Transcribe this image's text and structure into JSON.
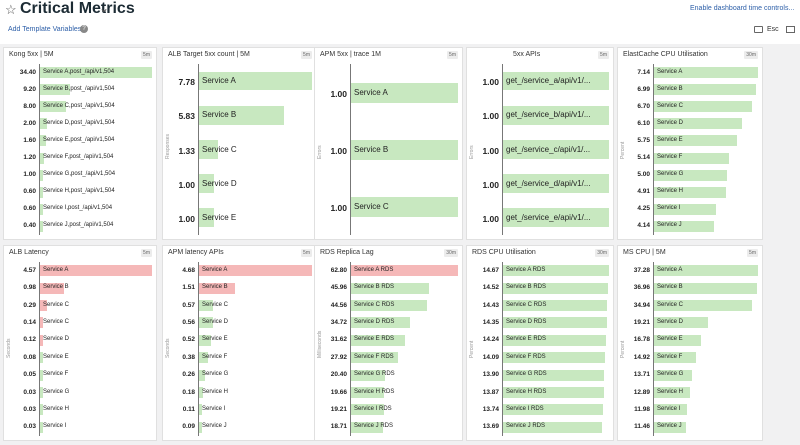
{
  "header": {
    "title": "Critical Metrics",
    "add_template_variables": "Add Template Variables",
    "enable_controls": "Enable dashboard time controls...",
    "esc": "Esc"
  },
  "colors": {
    "green": "#c8e8c0",
    "red": "#f5b8b8",
    "link": "#2d5fa8"
  },
  "widgets": [
    {
      "title": "Kong 5xx | 5M",
      "badge": "5m",
      "ylabel": "",
      "rows": [
        {
          "value": "34.40",
          "label": "Service A,post_/api/v1,504",
          "frac": 1.0,
          "color": "green"
        },
        {
          "value": "9.20",
          "label": "Service B,post_/api/v1,504",
          "frac": 0.27,
          "color": "green"
        },
        {
          "value": "8.00",
          "label": "Service C,post_/api/v1,504",
          "frac": 0.23,
          "color": "green"
        },
        {
          "value": "2.00",
          "label": "Service D,post_/api/v1,504",
          "frac": 0.06,
          "color": "green"
        },
        {
          "value": "1.60",
          "label": "Service E,post_/api/v1,504",
          "frac": 0.05,
          "color": "green"
        },
        {
          "value": "1.20",
          "label": "Service F,post_/api/v1,504",
          "frac": 0.04,
          "color": "green"
        },
        {
          "value": "1.00",
          "label": "Service G,post_/api/v1,504",
          "frac": 0.03,
          "color": "green"
        },
        {
          "value": "0.60",
          "label": "Service H,post_/api/v1,504",
          "frac": 0.02,
          "color": "green"
        },
        {
          "value": "0.60",
          "label": "Service I,post_/api/v1,504",
          "frac": 0.02,
          "color": "green"
        },
        {
          "value": "0.40",
          "label": "Service J,post_/api/v1,504",
          "frac": 0.01,
          "color": "green"
        }
      ]
    },
    {
      "title": "ALB Target 5xx count | 5M",
      "badge": "5m",
      "ylabel": "Responses",
      "rows": [
        {
          "value": "7.78",
          "label": "Service A",
          "frac": 1.0,
          "color": "green"
        },
        {
          "value": "5.83",
          "label": "Service B",
          "frac": 0.75,
          "color": "green"
        },
        {
          "value": "1.33",
          "label": "Service C",
          "frac": 0.17,
          "color": "green"
        },
        {
          "value": "1.00",
          "label": "Service D",
          "frac": 0.13,
          "color": "green"
        },
        {
          "value": "1.00",
          "label": "Service E",
          "frac": 0.13,
          "color": "green"
        }
      ]
    },
    {
      "title": "APM 5xx | trace 1M",
      "badge": "5m",
      "ylabel": "Errors",
      "rows": [
        {
          "value": "1.00",
          "label": "Service A",
          "frac": 1.0,
          "color": "green"
        },
        {
          "value": "1.00",
          "label": "Service B",
          "frac": 1.0,
          "color": "green"
        },
        {
          "value": "1.00",
          "label": "Service C",
          "frac": 1.0,
          "color": "green"
        }
      ]
    },
    {
      "title": "5xx APIs",
      "badge": "5m",
      "ylabel": "Errors",
      "rows": [
        {
          "value": "1.00",
          "label": "get_/service_a/api/v1/...",
          "frac": 1.0,
          "color": "green"
        },
        {
          "value": "1.00",
          "label": "get_/service_b/api/v1/...",
          "frac": 1.0,
          "color": "green"
        },
        {
          "value": "1.00",
          "label": "get_/service_c/api/v1/...",
          "frac": 1.0,
          "color": "green"
        },
        {
          "value": "1.00",
          "label": "get_/service_d/api/v1/...",
          "frac": 1.0,
          "color": "green"
        },
        {
          "value": "1.00",
          "label": "get_/service_e/api/v1/...",
          "frac": 1.0,
          "color": "green"
        }
      ]
    },
    {
      "title": "ElastCache CPU Utilisation",
      "badge": "30m",
      "ylabel": "Percent",
      "rows": [
        {
          "value": "7.14",
          "label": "Service A",
          "frac": 1.0,
          "color": "green"
        },
        {
          "value": "6.99",
          "label": "Service B",
          "frac": 0.98,
          "color": "green"
        },
        {
          "value": "6.70",
          "label": "Service C",
          "frac": 0.94,
          "color": "green"
        },
        {
          "value": "6.10",
          "label": "Service D",
          "frac": 0.85,
          "color": "green"
        },
        {
          "value": "5.75",
          "label": "Service E",
          "frac": 0.8,
          "color": "green"
        },
        {
          "value": "5.14",
          "label": "Service F",
          "frac": 0.72,
          "color": "green"
        },
        {
          "value": "5.00",
          "label": "Service G",
          "frac": 0.7,
          "color": "green"
        },
        {
          "value": "4.91",
          "label": "Service H",
          "frac": 0.69,
          "color": "green"
        },
        {
          "value": "4.25",
          "label": "Service I",
          "frac": 0.6,
          "color": "green"
        },
        {
          "value": "4.14",
          "label": "Service J",
          "frac": 0.58,
          "color": "green"
        }
      ]
    },
    {
      "title": "ALB Latency",
      "badge": "5m",
      "ylabel": "Seconds",
      "rows": [
        {
          "value": "4.57",
          "label": "Service A",
          "frac": 1.0,
          "color": "red"
        },
        {
          "value": "0.98",
          "label": "Service B",
          "frac": 0.21,
          "color": "red"
        },
        {
          "value": "0.29",
          "label": "Service C",
          "frac": 0.06,
          "color": "red"
        },
        {
          "value": "0.14",
          "label": "Service C",
          "frac": 0.03,
          "color": "red"
        },
        {
          "value": "0.12",
          "label": "Service D",
          "frac": 0.03,
          "color": "red"
        },
        {
          "value": "0.08",
          "label": "Service E",
          "frac": 0.017,
          "color": "green"
        },
        {
          "value": "0.05",
          "label": "Service F",
          "frac": 0.011,
          "color": "green"
        },
        {
          "value": "0.03",
          "label": "Service G",
          "frac": 0.007,
          "color": "green"
        },
        {
          "value": "0.03",
          "label": "Service H",
          "frac": 0.007,
          "color": "green"
        },
        {
          "value": "0.03",
          "label": "Service I",
          "frac": 0.007,
          "color": "green"
        }
      ]
    },
    {
      "title": "APM latency APIs",
      "badge": "5m",
      "ylabel": "Seconds",
      "rows": [
        {
          "value": "4.68",
          "label": "Service A",
          "frac": 1.0,
          "color": "red"
        },
        {
          "value": "1.51",
          "label": "Service B",
          "frac": 0.32,
          "color": "red"
        },
        {
          "value": "0.57",
          "label": "Service C",
          "frac": 0.12,
          "color": "green"
        },
        {
          "value": "0.56",
          "label": "Service D",
          "frac": 0.12,
          "color": "green"
        },
        {
          "value": "0.52",
          "label": "Service E",
          "frac": 0.11,
          "color": "green"
        },
        {
          "value": "0.38",
          "label": "Service F",
          "frac": 0.08,
          "color": "green"
        },
        {
          "value": "0.26",
          "label": "Service G",
          "frac": 0.056,
          "color": "green"
        },
        {
          "value": "0.18",
          "label": "Service H",
          "frac": 0.038,
          "color": "green"
        },
        {
          "value": "0.11",
          "label": "Service I",
          "frac": 0.024,
          "color": "green"
        },
        {
          "value": "0.09",
          "label": "Service J",
          "frac": 0.019,
          "color": "green"
        }
      ]
    },
    {
      "title": "RDS Replica Lag",
      "badge": "30m",
      "ylabel": "Milliseconds",
      "rows": [
        {
          "value": "62.80",
          "label": "Service A RDS",
          "frac": 1.0,
          "color": "red"
        },
        {
          "value": "45.96",
          "label": "Service B RDS",
          "frac": 0.73,
          "color": "green"
        },
        {
          "value": "44.56",
          "label": "Service C RDS",
          "frac": 0.71,
          "color": "green"
        },
        {
          "value": "34.72",
          "label": "Service D RDS",
          "frac": 0.55,
          "color": "green"
        },
        {
          "value": "31.62",
          "label": "Service E RDS",
          "frac": 0.5,
          "color": "green"
        },
        {
          "value": "27.92",
          "label": "Service F RDS",
          "frac": 0.44,
          "color": "green"
        },
        {
          "value": "20.40",
          "label": "Service G RDS",
          "frac": 0.32,
          "color": "green"
        },
        {
          "value": "19.66",
          "label": "Service H RDS",
          "frac": 0.31,
          "color": "green"
        },
        {
          "value": "19.21",
          "label": "Service I RDS",
          "frac": 0.31,
          "color": "green"
        },
        {
          "value": "18.71",
          "label": "Service J RDS",
          "frac": 0.3,
          "color": "green"
        }
      ]
    },
    {
      "title": "RDS CPU Utilisation",
      "badge": "30m",
      "ylabel": "Percent",
      "rows": [
        {
          "value": "14.67",
          "label": "Service A RDS",
          "frac": 1.0,
          "color": "green"
        },
        {
          "value": "14.52",
          "label": "Service B RDS",
          "frac": 0.99,
          "color": "green"
        },
        {
          "value": "14.43",
          "label": "Service C RDS",
          "frac": 0.98,
          "color": "green"
        },
        {
          "value": "14.35",
          "label": "Service D RDS",
          "frac": 0.98,
          "color": "green"
        },
        {
          "value": "14.24",
          "label": "Service E RDS",
          "frac": 0.97,
          "color": "green"
        },
        {
          "value": "14.09",
          "label": "Service F RDS",
          "frac": 0.96,
          "color": "green"
        },
        {
          "value": "13.90",
          "label": "Service G RDS",
          "frac": 0.95,
          "color": "green"
        },
        {
          "value": "13.87",
          "label": "Service H RDS",
          "frac": 0.95,
          "color": "green"
        },
        {
          "value": "13.74",
          "label": "Service I RDS",
          "frac": 0.94,
          "color": "green"
        },
        {
          "value": "13.69",
          "label": "Service J RDS",
          "frac": 0.93,
          "color": "green"
        }
      ]
    },
    {
      "title": "MS CPU | 5M",
      "badge": "5m",
      "ylabel": "Percent",
      "rows": [
        {
          "value": "37.28",
          "label": "Service A",
          "frac": 1.0,
          "color": "green"
        },
        {
          "value": "36.96",
          "label": "Service B",
          "frac": 0.99,
          "color": "green"
        },
        {
          "value": "34.94",
          "label": "Service C",
          "frac": 0.94,
          "color": "green"
        },
        {
          "value": "19.21",
          "label": "Service D",
          "frac": 0.52,
          "color": "green"
        },
        {
          "value": "16.78",
          "label": "Service E",
          "frac": 0.45,
          "color": "green"
        },
        {
          "value": "14.92",
          "label": "Service F",
          "frac": 0.4,
          "color": "green"
        },
        {
          "value": "13.71",
          "label": "Service G",
          "frac": 0.37,
          "color": "green"
        },
        {
          "value": "12.89",
          "label": "Service H",
          "frac": 0.35,
          "color": "green"
        },
        {
          "value": "11.98",
          "label": "Service I",
          "frac": 0.32,
          "color": "green"
        },
        {
          "value": "11.46",
          "label": "Service J",
          "frac": 0.31,
          "color": "green"
        }
      ]
    }
  ]
}
